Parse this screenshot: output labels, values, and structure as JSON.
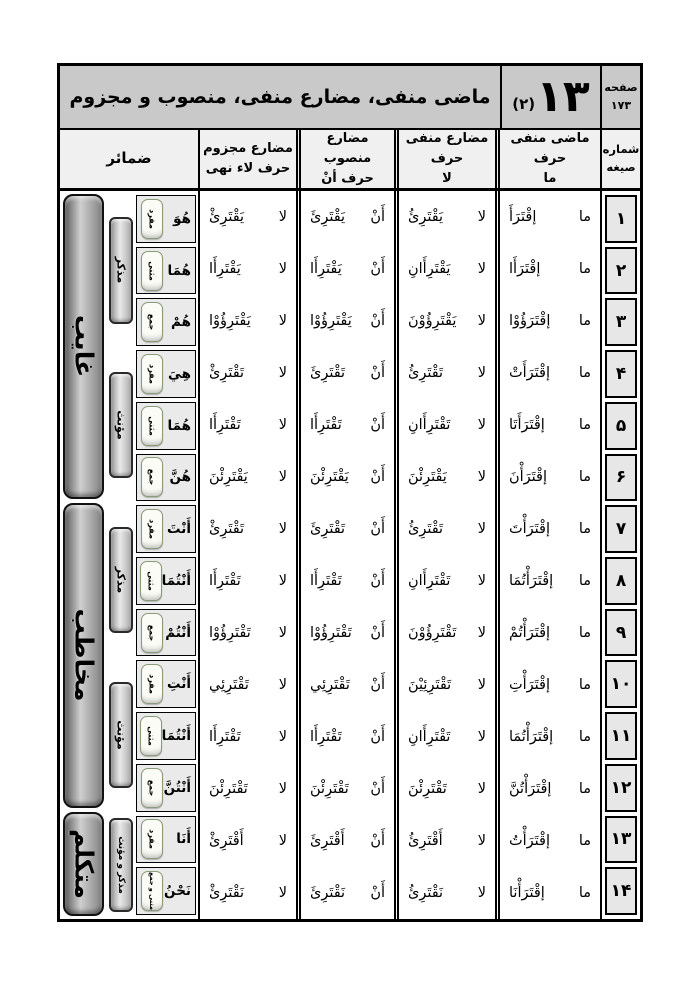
{
  "header": {
    "title": "ماضی منفی، مضارع منفی، منصوب و مجزوم",
    "lesson_number": "۱۳",
    "lesson_suffix": "(۲)",
    "page_label": "صفحه",
    "page_number": "۱۷۳"
  },
  "columns": {
    "row_number": {
      "line1": "شماره",
      "line2": "صیغه"
    },
    "mazi": {
      "line1": "ماضی منفی حرف",
      "line2": "ما"
    },
    "mozare_manfi": {
      "line1": "مضارع منفی حرف",
      "line2": "لا"
    },
    "mozare_mansub": {
      "line1": "مضارع منصوب",
      "line2": "حرف أنْ"
    },
    "mozare_majzum": {
      "line1": "مضارع مجزوم",
      "line2": "حرف لاء نهی"
    },
    "pronouns": "ضمائر"
  },
  "groups": [
    {
      "person": "غایب",
      "genders": [
        "مذکر",
        "مؤنث"
      ]
    },
    {
      "person": "مخاطب",
      "genders": [
        "مذکر",
        "مؤنث"
      ]
    },
    {
      "person": "متکلم",
      "genders": [
        "مذکر و مؤنث"
      ]
    }
  ],
  "rows": [
    {
      "num": "۱",
      "pronoun": "هُوَ",
      "badge": "مفرد",
      "mazi": {
        "particle": "ما",
        "verb": "إقْتَرَأَ"
      },
      "manfi": {
        "particle": "لا",
        "verb": "يَقْتَرِئُ"
      },
      "mansub": {
        "particle": "أَنْ",
        "verb": "يَقْتَرِئَ"
      },
      "majzum": {
        "particle": "لا",
        "verb": "يَقْتَرِئْ"
      }
    },
    {
      "num": "۲",
      "pronoun": "هُمَا",
      "badge": "مثنی",
      "mazi": {
        "particle": "ما",
        "verb": "إقْتَرَأَا"
      },
      "manfi": {
        "particle": "لا",
        "verb": "يَقْتَرِأَانِ"
      },
      "mansub": {
        "particle": "أَنْ",
        "verb": "يَقْتَرِأَا"
      },
      "majzum": {
        "particle": "لا",
        "verb": "يَقْتَرِأَا"
      }
    },
    {
      "num": "۳",
      "pronoun": "هُمْ",
      "badge": "جمع",
      "mazi": {
        "particle": "ما",
        "verb": "إقْتَرَؤُوْا"
      },
      "manfi": {
        "particle": "لا",
        "verb": "يَقْتَرِؤُوْنَ"
      },
      "mansub": {
        "particle": "أَنْ",
        "verb": "يَقْتَرِؤُوْا"
      },
      "majzum": {
        "particle": "لا",
        "verb": "يَقْتَرِؤُوْا"
      }
    },
    {
      "num": "۴",
      "pronoun": "هِيَ",
      "badge": "مفرد",
      "mazi": {
        "particle": "ما",
        "verb": "إقْتَرَأَتْ"
      },
      "manfi": {
        "particle": "لا",
        "verb": "تَقْتَرِئُ"
      },
      "mansub": {
        "particle": "أَنْ",
        "verb": "تَقْتَرِئَ"
      },
      "majzum": {
        "particle": "لا",
        "verb": "تَقْتَرِئْ"
      }
    },
    {
      "num": "۵",
      "pronoun": "هُمَا",
      "badge": "مثنی",
      "mazi": {
        "particle": "ما",
        "verb": "إقْتَرَأَتَا"
      },
      "manfi": {
        "particle": "لا",
        "verb": "تَقْتَرِأَانِ"
      },
      "mansub": {
        "particle": "أَنْ",
        "verb": "تَقْتَرِأَا"
      },
      "majzum": {
        "particle": "لا",
        "verb": "تَقْتَرِأَا"
      }
    },
    {
      "num": "۶",
      "pronoun": "هُنَّ",
      "badge": "جمع",
      "mazi": {
        "particle": "ما",
        "verb": "إقْتَرَأْنَ"
      },
      "manfi": {
        "particle": "لا",
        "verb": "يَقْتَرِئْنَ"
      },
      "mansub": {
        "particle": "أَنْ",
        "verb": "يَقْتَرِئْنَ"
      },
      "majzum": {
        "particle": "لا",
        "verb": "يَقْتَرِئْنَ"
      }
    },
    {
      "num": "۷",
      "pronoun": "أَنْتَ",
      "badge": "مفرد",
      "mazi": {
        "particle": "ما",
        "verb": "إقْتَرَأْتَ"
      },
      "manfi": {
        "particle": "لا",
        "verb": "تَقْتَرِئُ"
      },
      "mansub": {
        "particle": "أَنْ",
        "verb": "تَقْتَرِئَ"
      },
      "majzum": {
        "particle": "لا",
        "verb": "تَقْتَرِئْ"
      }
    },
    {
      "num": "۸",
      "pronoun": "أَنْتُمَا",
      "badge": "مثنی",
      "mazi": {
        "particle": "ما",
        "verb": "إقْتَرَأْتُمَا"
      },
      "manfi": {
        "particle": "لا",
        "verb": "تَقْتَرِأَانِ"
      },
      "mansub": {
        "particle": "أَنْ",
        "verb": "تَقْتَرِأَا"
      },
      "majzum": {
        "particle": "لا",
        "verb": "تَقْتَرِأَا"
      }
    },
    {
      "num": "۹",
      "pronoun": "أَنْتُمْ",
      "badge": "جمع",
      "mazi": {
        "particle": "ما",
        "verb": "إقْتَرَأْتُمْ"
      },
      "manfi": {
        "particle": "لا",
        "verb": "تَقْتَرِؤُوْنَ"
      },
      "mansub": {
        "particle": "أَنْ",
        "verb": "تَقْتَرِؤُوْا"
      },
      "majzum": {
        "particle": "لا",
        "verb": "تَقْتَرِؤُوْا"
      }
    },
    {
      "num": "۱۰",
      "pronoun": "أَنْتِ",
      "badge": "مفرد",
      "mazi": {
        "particle": "ما",
        "verb": "إقْتَرَأْتِ"
      },
      "manfi": {
        "particle": "لا",
        "verb": "تَقْتَرِئِيْنَ"
      },
      "mansub": {
        "particle": "أَنْ",
        "verb": "تَقْتَرِئِي"
      },
      "majzum": {
        "particle": "لا",
        "verb": "تَقْتَرِئِي"
      }
    },
    {
      "num": "۱۱",
      "pronoun": "أَنْتُمَا",
      "badge": "مثنی",
      "mazi": {
        "particle": "ما",
        "verb": "إقْتَرَأْتُمَا"
      },
      "manfi": {
        "particle": "لا",
        "verb": "تَقْتَرِأَانِ"
      },
      "mansub": {
        "particle": "أَنْ",
        "verb": "تَقْتَرِأَا"
      },
      "majzum": {
        "particle": "لا",
        "verb": "تَقْتَرِأَا"
      }
    },
    {
      "num": "۱۲",
      "pronoun": "أَنْتُنَّ",
      "badge": "جمع",
      "mazi": {
        "particle": "ما",
        "verb": "إقْتَرَأْتُنَّ"
      },
      "manfi": {
        "particle": "لا",
        "verb": "تَقْتَرِئْنَ"
      },
      "mansub": {
        "particle": "أَنْ",
        "verb": "تَقْتَرِئْنَ"
      },
      "majzum": {
        "particle": "لا",
        "verb": "تَقْتَرِئْنَ"
      }
    },
    {
      "num": "۱۳",
      "pronoun": "أَنَا",
      "badge": "مفرد",
      "mazi": {
        "particle": "ما",
        "verb": "إقْتَرَأْتُ"
      },
      "manfi": {
        "particle": "لا",
        "verb": "أَقْتَرِئُ"
      },
      "mansub": {
        "particle": "أَنْ",
        "verb": "أَقْتَرِئَ"
      },
      "majzum": {
        "particle": "لا",
        "verb": "أَقْتَرِئْ"
      }
    },
    {
      "num": "۱۴",
      "pronoun": "نَحْنُ",
      "badge": "مثنی و جمع",
      "mazi": {
        "particle": "ما",
        "verb": "إقْتَرَأْنَا"
      },
      "manfi": {
        "particle": "لا",
        "verb": "نَقْتَرِئُ"
      },
      "mansub": {
        "particle": "أَنْ",
        "verb": "نَقْتَرِئَ"
      },
      "majzum": {
        "particle": "لا",
        "verb": "نَقْتَرِئْ"
      }
    }
  ]
}
